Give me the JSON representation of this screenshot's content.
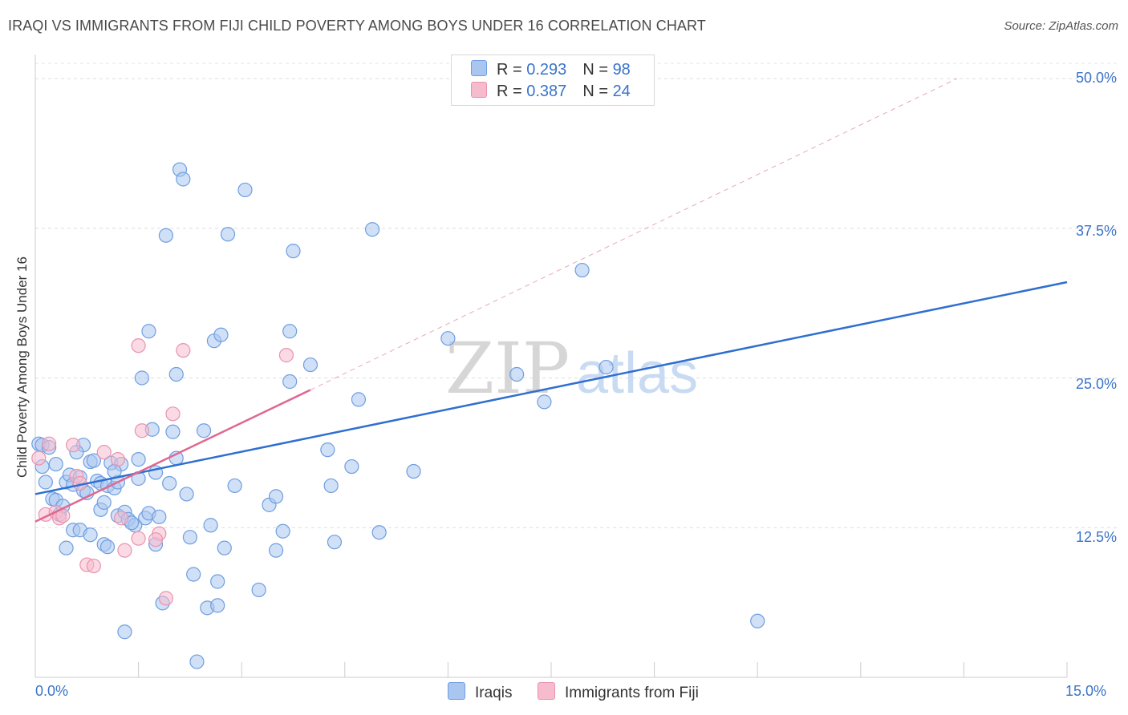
{
  "header": {
    "title": "IRAQI VS IMMIGRANTS FROM FIJI CHILD POVERTY AMONG BOYS UNDER 16 CORRELATION CHART",
    "source": "Source: ZipAtlas.com"
  },
  "legend": {
    "rows": [
      {
        "r_label": "R = ",
        "r_value": "0.293",
        "n_label": "N = ",
        "n_value": "98"
      },
      {
        "r_label": "R = ",
        "r_value": "0.387",
        "n_label": "N = ",
        "n_value": "24"
      }
    ]
  },
  "bottom_legend": {
    "iraqis": "Iraqis",
    "fiji": "Immigrants from Fiji"
  },
  "axes": {
    "ylabel": "Child Poverty Among Boys Under 16",
    "x_min_label": "0.0%",
    "x_max_label": "15.0%",
    "y_ticks": [
      "50.0%",
      "37.5%",
      "25.0%",
      "12.5%"
    ]
  },
  "watermark": {
    "zip": "ZIP",
    "atlas": "atlas"
  },
  "colors": {
    "iraqis_fill": "#a9c6f0",
    "iraqis_stroke": "#6f9ee0",
    "iraqis_line": "#2f6fd0",
    "fiji_fill": "#f6bccd",
    "fiji_stroke": "#ea93ae",
    "fiji_line": "#e06890",
    "tick_text": "#3a73c8"
  },
  "chart_data": {
    "type": "scatter",
    "title": "IRAQI VS IMMIGRANTS FROM FIJI CHILD POVERTY AMONG BOYS UNDER 16 CORRELATION CHART",
    "xlabel": "",
    "ylabel": "Child Poverty Among Boys Under 16",
    "xlim": [
      0,
      15
    ],
    "ylim": [
      0,
      50
    ],
    "grid": true,
    "legend_position": "top-center",
    "series": [
      {
        "name": "Iraqis",
        "stats": {
          "R": 0.293,
          "N": 98
        },
        "trendline": {
          "x": [
            0,
            15
          ],
          "y": [
            15.3,
            33.0
          ]
        },
        "points": [
          [
            0.05,
            19.5
          ],
          [
            0.1,
            19.4
          ],
          [
            0.1,
            17.6
          ],
          [
            0.15,
            16.3
          ],
          [
            0.2,
            19.2
          ],
          [
            0.3,
            17.8
          ],
          [
            0.25,
            14.9
          ],
          [
            0.3,
            14.8
          ],
          [
            0.35,
            13.6
          ],
          [
            0.45,
            10.8
          ],
          [
            0.45,
            16.3
          ],
          [
            0.5,
            16.9
          ],
          [
            0.55,
            12.3
          ],
          [
            0.55,
            16.1
          ],
          [
            0.65,
            16.7
          ],
          [
            0.65,
            12.3
          ],
          [
            0.7,
            19.4
          ],
          [
            0.7,
            15.6
          ],
          [
            0.75,
            15.4
          ],
          [
            0.8,
            11.9
          ],
          [
            0.8,
            18.0
          ],
          [
            0.85,
            18.1
          ],
          [
            0.9,
            16.4
          ],
          [
            0.95,
            14.0
          ],
          [
            0.95,
            16.2
          ],
          [
            1.0,
            14.6
          ],
          [
            1.0,
            11.1
          ],
          [
            1.05,
            10.9
          ],
          [
            1.05,
            16.0
          ],
          [
            1.1,
            17.9
          ],
          [
            1.15,
            15.8
          ],
          [
            1.2,
            13.5
          ],
          [
            1.2,
            16.3
          ],
          [
            1.25,
            17.8
          ],
          [
            1.3,
            13.8
          ],
          [
            1.35,
            13.2
          ],
          [
            1.3,
            3.8
          ],
          [
            1.45,
            12.7
          ],
          [
            1.5,
            18.2
          ],
          [
            1.5,
            16.6
          ],
          [
            1.55,
            25.0
          ],
          [
            1.6,
            13.3
          ],
          [
            1.65,
            13.7
          ],
          [
            1.65,
            28.9
          ],
          [
            1.7,
            20.7
          ],
          [
            1.75,
            17.1
          ],
          [
            1.75,
            11.1
          ],
          [
            1.8,
            13.4
          ],
          [
            1.85,
            6.2
          ],
          [
            1.9,
            36.9
          ],
          [
            1.95,
            16.2
          ],
          [
            2.0,
            20.5
          ],
          [
            2.05,
            18.3
          ],
          [
            2.05,
            25.3
          ],
          [
            2.1,
            42.4
          ],
          [
            2.15,
            41.6
          ],
          [
            2.2,
            15.3
          ],
          [
            2.25,
            11.7
          ],
          [
            2.3,
            8.6
          ],
          [
            2.35,
            1.3
          ],
          [
            2.45,
            20.6
          ],
          [
            2.5,
            5.8
          ],
          [
            2.55,
            12.7
          ],
          [
            2.6,
            28.1
          ],
          [
            2.65,
            6.0
          ],
          [
            2.7,
            28.6
          ],
          [
            2.65,
            8.0
          ],
          [
            2.75,
            10.8
          ],
          [
            2.8,
            37.0
          ],
          [
            2.9,
            16.0
          ],
          [
            3.05,
            40.7
          ],
          [
            3.25,
            7.3
          ],
          [
            3.4,
            14.4
          ],
          [
            3.5,
            15.1
          ],
          [
            3.5,
            10.6
          ],
          [
            3.6,
            12.2
          ],
          [
            3.7,
            28.9
          ],
          [
            3.7,
            24.7
          ],
          [
            3.75,
            35.6
          ],
          [
            4.0,
            26.1
          ],
          [
            4.25,
            19.0
          ],
          [
            4.3,
            16.0
          ],
          [
            4.35,
            11.3
          ],
          [
            4.6,
            17.6
          ],
          [
            4.7,
            23.2
          ],
          [
            4.9,
            37.4
          ],
          [
            5.0,
            12.1
          ],
          [
            5.5,
            17.2
          ],
          [
            6.0,
            28.3
          ],
          [
            7.0,
            25.3
          ],
          [
            7.4,
            23.0
          ],
          [
            7.95,
            34.0
          ],
          [
            8.3,
            25.9
          ],
          [
            10.5,
            4.7
          ],
          [
            1.15,
            17.2
          ],
          [
            0.6,
            18.8
          ],
          [
            1.4,
            12.9
          ],
          [
            0.4,
            14.3
          ]
        ]
      },
      {
        "name": "Immigrants from Fiji",
        "stats": {
          "R": 0.387,
          "N": 24
        },
        "trendline_solid": {
          "x": [
            0,
            4.0
          ],
          "y": [
            13.0,
            24.0
          ]
        },
        "trendline_dashed": {
          "x": [
            4.0,
            13.4
          ],
          "y": [
            24.0,
            50.0
          ]
        },
        "points": [
          [
            0.05,
            18.3
          ],
          [
            0.15,
            13.6
          ],
          [
            0.2,
            19.5
          ],
          [
            0.3,
            13.8
          ],
          [
            0.35,
            13.3
          ],
          [
            0.4,
            13.5
          ],
          [
            0.55,
            19.4
          ],
          [
            0.6,
            16.8
          ],
          [
            0.65,
            16.2
          ],
          [
            0.75,
            9.4
          ],
          [
            0.85,
            9.3
          ],
          [
            1.0,
            18.8
          ],
          [
            1.2,
            18.2
          ],
          [
            1.25,
            13.3
          ],
          [
            1.3,
            10.6
          ],
          [
            1.5,
            11.6
          ],
          [
            1.5,
            27.7
          ],
          [
            1.55,
            20.6
          ],
          [
            1.8,
            12.0
          ],
          [
            1.9,
            6.6
          ],
          [
            2.0,
            22.0
          ],
          [
            2.15,
            27.3
          ],
          [
            3.65,
            26.9
          ],
          [
            1.75,
            11.5
          ]
        ]
      }
    ]
  }
}
